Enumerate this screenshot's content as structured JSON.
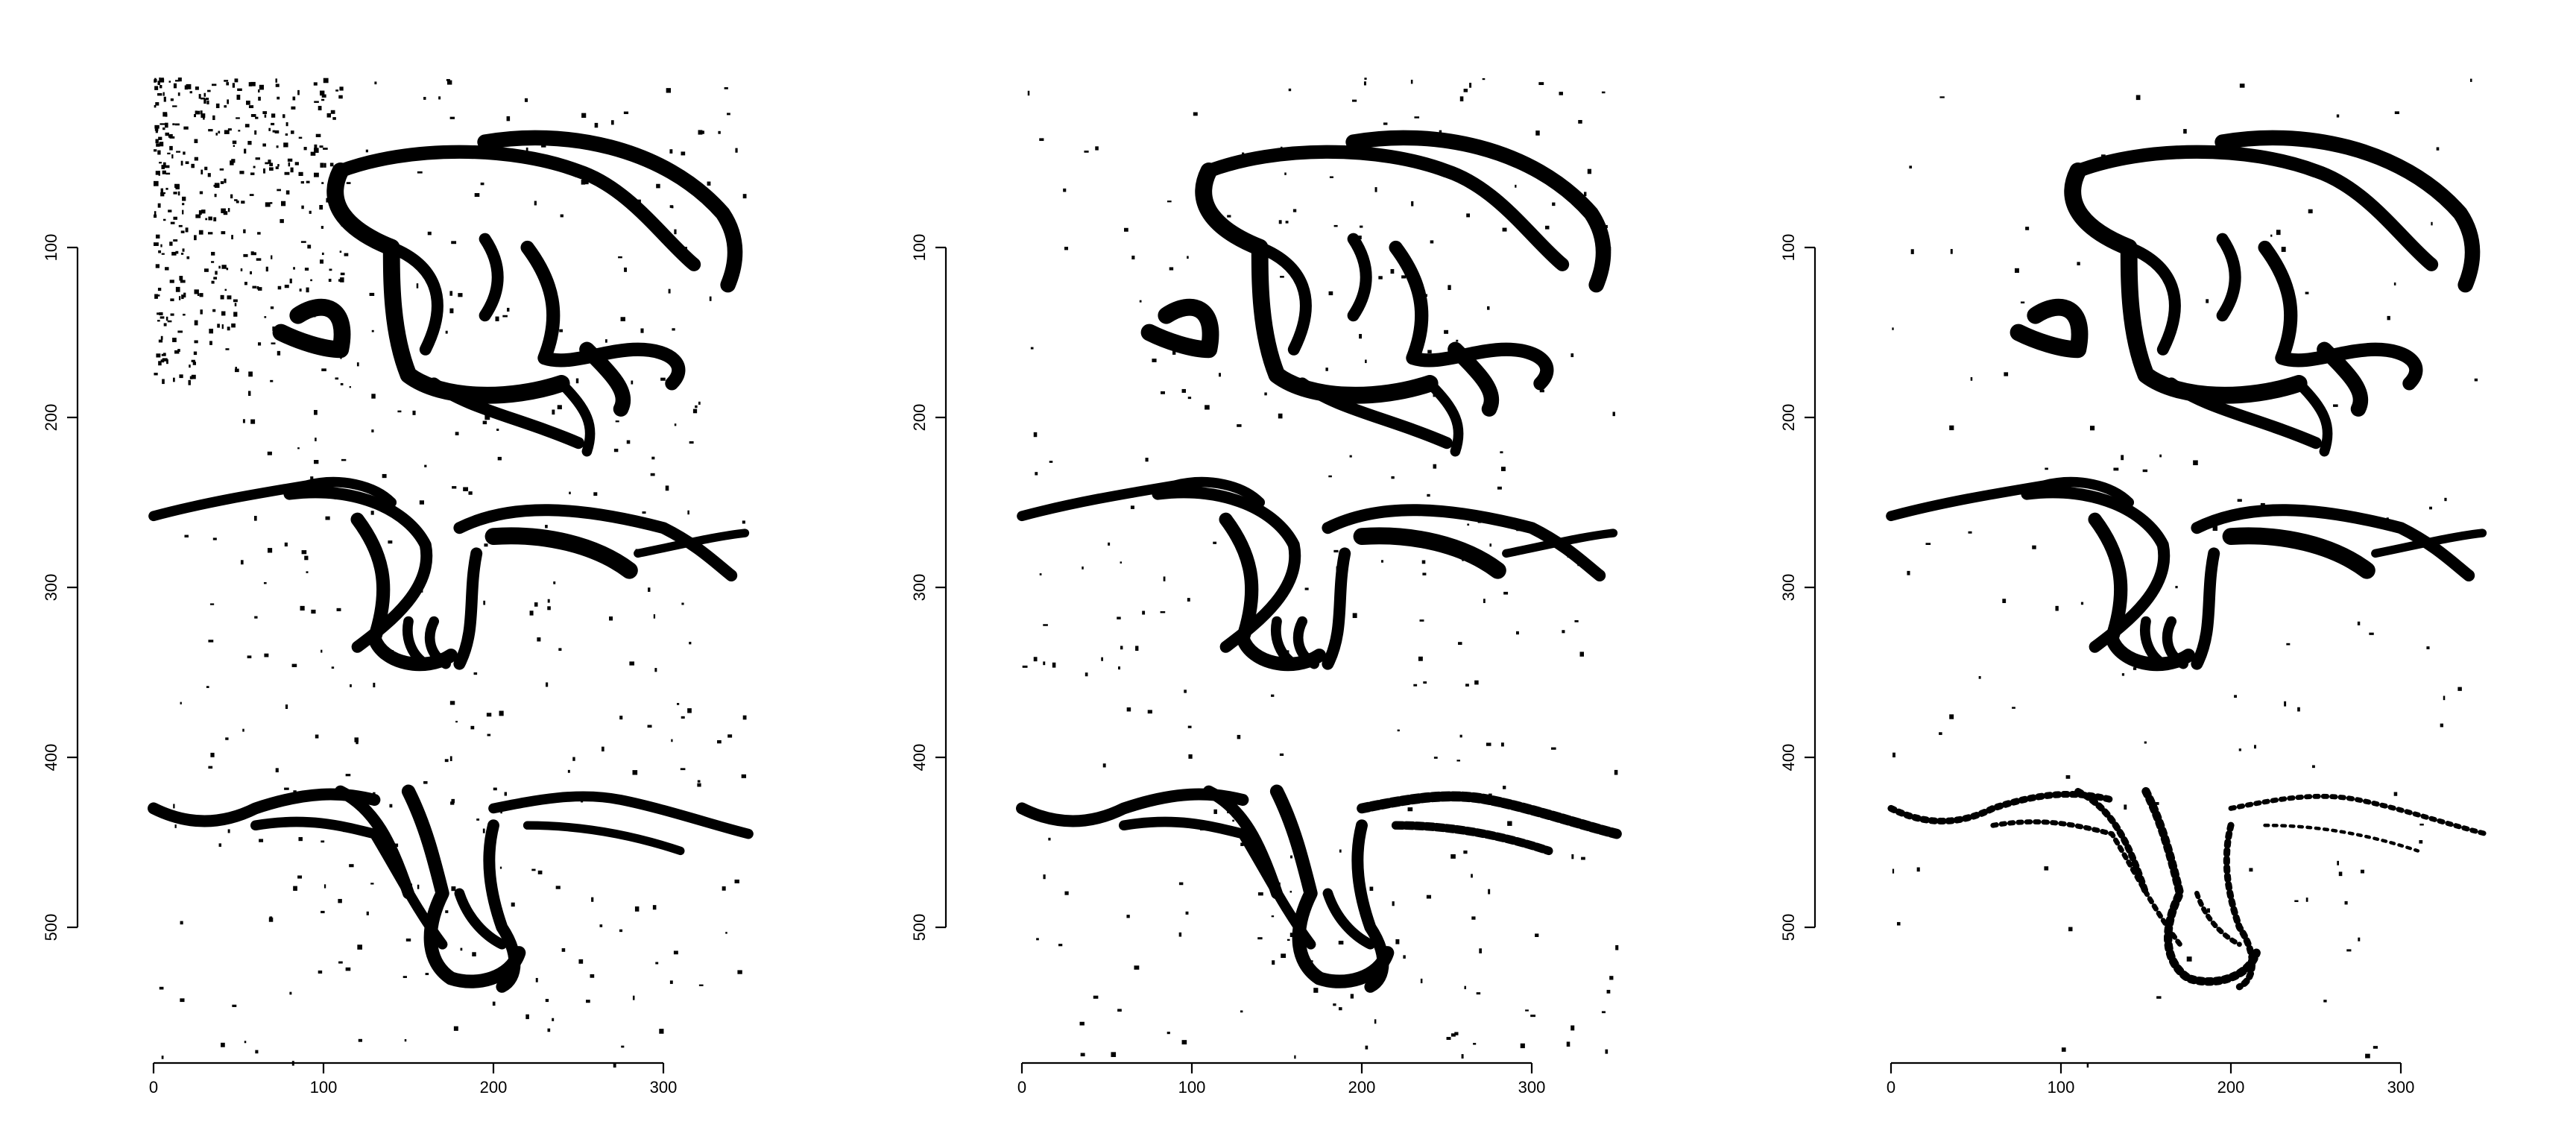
{
  "chart_data": [
    {
      "type": "heatmap",
      "colors": [
        "#000000",
        "#ffffff"
      ],
      "x_ticks": [
        0,
        100,
        200,
        300
      ],
      "y_ticks": [
        100,
        200,
        300,
        400,
        500
      ],
      "xlim": [
        0,
        350
      ],
      "ylim": [
        0,
        580
      ],
      "y_reversed": true,
      "grid": false,
      "noise_level": "high"
    },
    {
      "type": "heatmap",
      "colors": [
        "#000000",
        "#ffffff"
      ],
      "x_ticks": [
        0,
        100,
        200,
        300
      ],
      "y_ticks": [
        100,
        200,
        300,
        400,
        500
      ],
      "xlim": [
        0,
        350
      ],
      "ylim": [
        0,
        580
      ],
      "y_reversed": true,
      "grid": false,
      "noise_level": "medium"
    },
    {
      "type": "heatmap",
      "colors": [
        "#000000",
        "#ffffff"
      ],
      "x_ticks": [
        0,
        100,
        200,
        300
      ],
      "y_ticks": [
        100,
        200,
        300,
        400,
        500
      ],
      "xlim": [
        0,
        350
      ],
      "ylim": [
        0,
        580
      ],
      "y_reversed": true,
      "grid": false,
      "noise_level": "low"
    }
  ]
}
